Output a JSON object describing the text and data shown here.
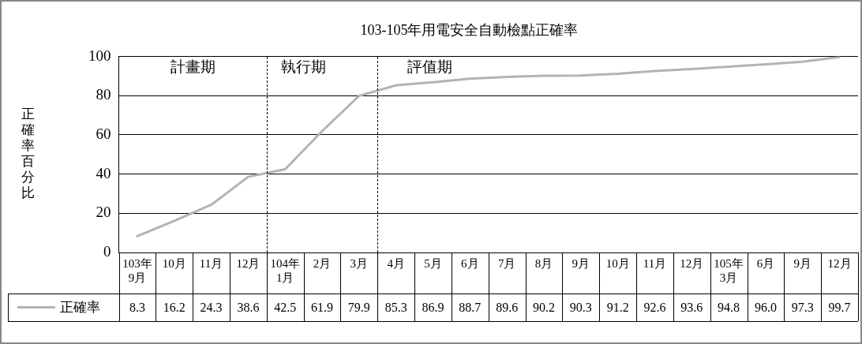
{
  "chart_data": {
    "type": "line",
    "title": "103-105年用電安全自動檢點正確率",
    "ylabel": "正確率百分比",
    "categories": [
      "103年\n9月",
      "10月",
      "11月",
      "12月",
      "104年\n1月",
      "2月",
      "3月",
      "4月",
      "5月",
      "6月",
      "7月",
      "8月",
      "9月",
      "10月",
      "11月",
      "12月",
      "105年\n3月",
      "6月",
      "9月",
      "12月"
    ],
    "series": [
      {
        "name": "正確率",
        "color": "#b3b3b3",
        "values": [
          8.3,
          16.2,
          24.3,
          38.6,
          42.5,
          61.9,
          79.9,
          85.3,
          86.9,
          88.7,
          89.6,
          90.2,
          90.3,
          91.2,
          92.6,
          93.6,
          94.8,
          96.0,
          97.3,
          99.7
        ],
        "value_labels": [
          "8.3",
          "16.2",
          "24.3",
          "38.6",
          "42.5",
          "61.9",
          "79.9",
          "85.3",
          "86.9",
          "88.7",
          "89.6",
          "90.2",
          "90.3",
          "91.2",
          "92.6",
          "93.6",
          "94.8",
          "96.0",
          "97.3",
          "99.7"
        ]
      }
    ],
    "ylim": [
      0,
      100
    ],
    "yticks": [
      0,
      20,
      40,
      60,
      80,
      100
    ],
    "grid": "y",
    "legend": "bottom",
    "marker": "none",
    "line_style": "solid",
    "annotations": [
      "計畫期",
      "執行期",
      "評值期"
    ]
  }
}
